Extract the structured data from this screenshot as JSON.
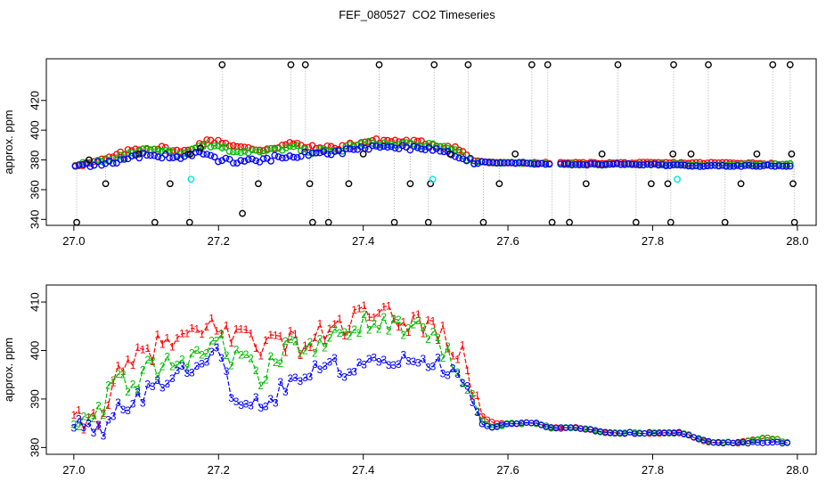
{
  "title": "FEF_080527  CO2 Timeseries",
  "colors": {
    "s1": "#ff0000",
    "s2": "#00bb00",
    "s3": "#0000ff",
    "black": "#000000",
    "cyan": "#00e5e5",
    "grey": "#aaaaaa"
  },
  "chart_data": [
    {
      "type": "scatter",
      "ylabel": "approx. ppm",
      "xlim": [
        27.0,
        28.0
      ],
      "ylim": [
        340,
        440
      ],
      "xticks": [
        "27.0",
        "27.2",
        "27.4",
        "27.6",
        "27.8",
        "28.0"
      ],
      "yticks": [
        "340",
        "360",
        "380",
        "400",
        "420"
      ],
      "series": [
        {
          "color": "black",
          "marker": "circle",
          "pairs": [
            [
              27.004,
              338
            ],
            [
              27.021,
              380
            ],
            [
              27.044,
              364
            ],
            [
              27.09,
              384
            ],
            [
              27.112,
              338
            ],
            [
              27.133,
              364
            ],
            [
              27.16,
              338
            ],
            [
              27.161,
              384
            ],
            [
              27.175,
              388
            ],
            [
              27.205,
              444
            ],
            [
              27.233,
              344
            ],
            [
              27.255,
              364
            ],
            [
              27.3,
              444
            ],
            [
              27.32,
              444
            ],
            [
              27.326,
              364
            ],
            [
              27.33,
              338
            ],
            [
              27.352,
              338
            ],
            [
              27.38,
              364
            ],
            [
              27.4,
              384
            ],
            [
              27.422,
              444
            ],
            [
              27.443,
              338
            ],
            [
              27.465,
              364
            ],
            [
              27.49,
              338
            ],
            [
              27.493,
              364
            ],
            [
              27.498,
              444
            ],
            [
              27.52,
              384
            ],
            [
              27.545,
              444
            ],
            [
              27.566,
              338
            ],
            [
              27.588,
              364
            ],
            [
              27.61,
              384
            ],
            [
              27.633,
              444
            ],
            [
              27.655,
              444
            ],
            [
              27.661,
              338
            ],
            [
              27.685,
              338
            ],
            [
              27.708,
              364
            ],
            [
              27.73,
              384
            ],
            [
              27.752,
              444
            ],
            [
              27.777,
              338
            ],
            [
              27.798,
              364
            ],
            [
              27.821,
              364
            ],
            [
              27.825,
              338
            ],
            [
              27.828,
              384
            ],
            [
              27.829,
              444
            ],
            [
              27.853,
              384
            ],
            [
              27.877,
              444
            ],
            [
              27.9,
              338
            ],
            [
              27.922,
              364
            ],
            [
              27.944,
              384
            ],
            [
              27.966,
              444
            ],
            [
              27.99,
              444
            ],
            [
              27.992,
              384
            ],
            [
              27.994,
              364
            ],
            [
              27.996,
              338
            ]
          ]
        },
        {
          "color": "cyan",
          "marker": "circle",
          "pairs": [
            [
              27.162,
              367
            ],
            [
              27.496,
              367
            ],
            [
              27.834,
              367
            ]
          ]
        }
      ],
      "profile": {
        "x": [
          27.0,
          27.03,
          27.06,
          27.09,
          27.12,
          27.15,
          27.18,
          27.2,
          27.23,
          27.26,
          27.3,
          27.33,
          27.36,
          27.4,
          27.43,
          27.47,
          27.5,
          27.53,
          27.55,
          27.58,
          27.62,
          27.66,
          27.7,
          27.75,
          27.8,
          27.84,
          27.88,
          27.93,
          27.99
        ],
        "s1": [
          377,
          378,
          383,
          388,
          388,
          385,
          392,
          393,
          388,
          387,
          391,
          388,
          388,
          392,
          393,
          392,
          390,
          388,
          380,
          378,
          378,
          378,
          378,
          378,
          378,
          378,
          378,
          378,
          377
        ],
        "s2": [
          377,
          378,
          381,
          386,
          386,
          383,
          390,
          388,
          386,
          385,
          389,
          386,
          386,
          391,
          392,
          391,
          389,
          386,
          379,
          378,
          378,
          377,
          377,
          377,
          377,
          377,
          376,
          377,
          377
        ],
        "s3": [
          377,
          377,
          379,
          383,
          383,
          382,
          385,
          380,
          379,
          380,
          383,
          384,
          385,
          388,
          389,
          388,
          386,
          383,
          379,
          378,
          378,
          377,
          377,
          377,
          377,
          376,
          376,
          376,
          376
        ]
      }
    },
    {
      "type": "line",
      "ylabel": "approx. ppm",
      "xlim": [
        27.0,
        28.0
      ],
      "ylim": [
        380,
        412
      ],
      "xticks": [
        "27.0",
        "27.2",
        "27.4",
        "27.6",
        "27.8",
        "28.0"
      ],
      "yticks": [
        "380",
        "390",
        "400",
        "410"
      ],
      "profile": {
        "x": [
          27.0,
          27.02,
          27.04,
          27.06,
          27.08,
          27.1,
          27.12,
          27.14,
          27.16,
          27.18,
          27.2,
          27.22,
          27.24,
          27.26,
          27.28,
          27.3,
          27.32,
          27.34,
          27.36,
          27.38,
          27.4,
          27.42,
          27.44,
          27.46,
          27.48,
          27.5,
          27.52,
          27.54,
          27.55,
          27.56,
          27.58,
          27.6,
          27.64,
          27.66,
          27.7,
          27.74,
          27.78,
          27.82,
          27.84,
          27.88,
          27.92,
          27.96,
          27.99
        ],
        "s1": [
          385,
          385,
          388,
          394,
          397,
          400,
          401,
          402,
          402,
          404,
          406,
          402,
          405,
          401,
          402,
          402,
          401,
          403,
          405,
          405,
          408,
          406,
          407,
          406,
          406,
          405,
          401,
          398,
          393,
          387,
          385,
          385,
          385,
          384,
          384,
          383,
          383,
          383,
          383,
          381,
          381,
          382,
          381
        ],
        "s2": [
          384,
          385,
          388,
          395,
          392,
          396,
          396,
          399,
          398,
          400,
          403,
          398,
          399,
          394,
          399,
          401,
          400,
          401,
          403,
          403,
          406,
          405,
          406,
          404,
          404,
          403,
          398,
          395,
          390,
          386,
          384,
          385,
          385,
          384,
          384,
          383,
          383,
          383,
          383,
          381,
          381,
          382,
          381
        ],
        "s3": [
          384,
          384,
          384,
          388,
          389,
          391,
          393,
          394,
          396,
          397,
          399,
          391,
          389,
          389,
          391,
          394,
          396,
          397,
          397,
          396,
          399,
          398,
          399,
          398,
          397,
          397,
          396,
          393,
          388,
          385,
          384,
          385,
          385,
          384,
          384,
          383,
          383,
          383,
          383,
          381,
          381,
          381,
          381
        ]
      },
      "marker_text": {
        "s1": "1",
        "s2": "2",
        "s3": "3"
      }
    }
  ]
}
